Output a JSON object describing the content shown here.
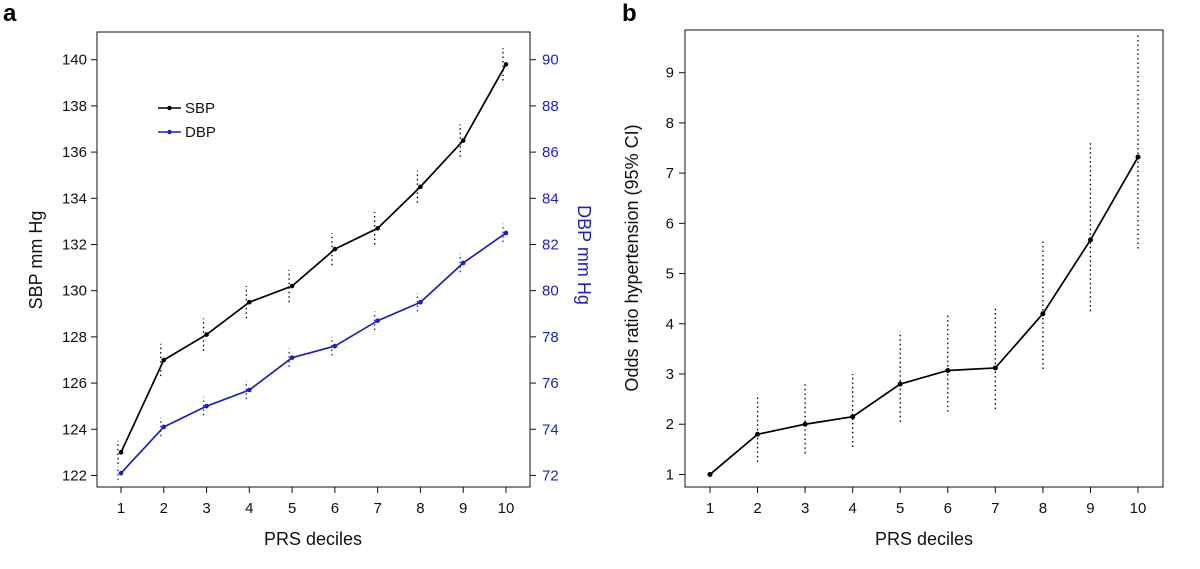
{
  "chart_data": [
    {
      "panel": "a",
      "type": "line",
      "xlabel": "PRS deciles",
      "ylabel": "SBP mm Hg",
      "y2label": "DBP mm Hg",
      "x": [
        1,
        2,
        3,
        4,
        5,
        6,
        7,
        8,
        9,
        10
      ],
      "xlim": [
        1,
        10
      ],
      "ylim": [
        121.5,
        141.2
      ],
      "y2lim": [
        71.5,
        91.2
      ],
      "yticks": [
        122,
        124,
        126,
        128,
        130,
        132,
        134,
        136,
        138,
        140
      ],
      "y2ticks": [
        72,
        74,
        76,
        78,
        80,
        82,
        84,
        86,
        88,
        90
      ],
      "legend": [
        "SBP",
        "DBP"
      ],
      "legend_position": "top-left",
      "series": [
        {
          "name": "SBP",
          "axis": "left",
          "color": "#000000",
          "values": [
            123.0,
            127.0,
            128.1,
            129.5,
            130.2,
            131.8,
            132.7,
            134.5,
            136.5,
            139.8
          ],
          "ci_low": [
            122.5,
            126.3,
            127.4,
            128.8,
            129.5,
            131.1,
            132.0,
            133.8,
            135.8,
            139.1
          ],
          "ci_high": [
            123.5,
            127.7,
            128.8,
            130.2,
            130.9,
            132.5,
            133.4,
            135.2,
            137.2,
            140.5
          ]
        },
        {
          "name": "DBP",
          "axis": "right",
          "color": "#1f1fbf",
          "values": [
            72.1,
            74.1,
            75.0,
            75.7,
            77.1,
            77.6,
            78.7,
            79.5,
            81.2,
            82.5
          ],
          "ci_low": [
            71.8,
            73.7,
            74.6,
            75.3,
            76.7,
            77.2,
            78.3,
            79.1,
            80.8,
            82.1
          ],
          "ci_high": [
            72.4,
            74.5,
            75.4,
            76.1,
            77.5,
            78.0,
            79.1,
            79.9,
            81.6,
            82.9
          ]
        }
      ]
    },
    {
      "panel": "b",
      "type": "line",
      "xlabel": "PRS deciles",
      "ylabel": "Odds ratio hypertension (95% CI)",
      "x": [
        1,
        2,
        3,
        4,
        5,
        6,
        7,
        8,
        9,
        10
      ],
      "xlim": [
        1,
        10
      ],
      "ylim": [
        0.75,
        9.85
      ],
      "yticks": [
        1,
        2,
        3,
        4,
        5,
        6,
        7,
        8,
        9
      ],
      "series": [
        {
          "name": "Odds ratio",
          "color": "#000000",
          "values": [
            1.0,
            1.8,
            2.0,
            2.15,
            2.8,
            3.07,
            3.12,
            4.2,
            5.67,
            7.32
          ],
          "ci_low": [
            1.0,
            1.25,
            1.42,
            1.55,
            2.05,
            2.25,
            2.3,
            3.1,
            4.25,
            5.5
          ],
          "ci_high": [
            1.0,
            2.6,
            2.8,
            3.0,
            3.85,
            4.2,
            4.3,
            5.7,
            7.65,
            9.75
          ]
        }
      ]
    }
  ],
  "panels": {
    "a": {
      "letter": "a",
      "xlabel": "PRS deciles",
      "ylabel": "SBP mm Hg",
      "y2label": "DBP mm Hg",
      "legend_sbp": "SBP",
      "legend_dbp": "DBP"
    },
    "b": {
      "letter": "b",
      "xlabel": "PRS deciles",
      "ylabel": "Odds ratio hypertension (95% CI)"
    }
  },
  "colors": {
    "sbp": "#000000",
    "dbp": "#1f1fbf",
    "axis": "#111111"
  }
}
